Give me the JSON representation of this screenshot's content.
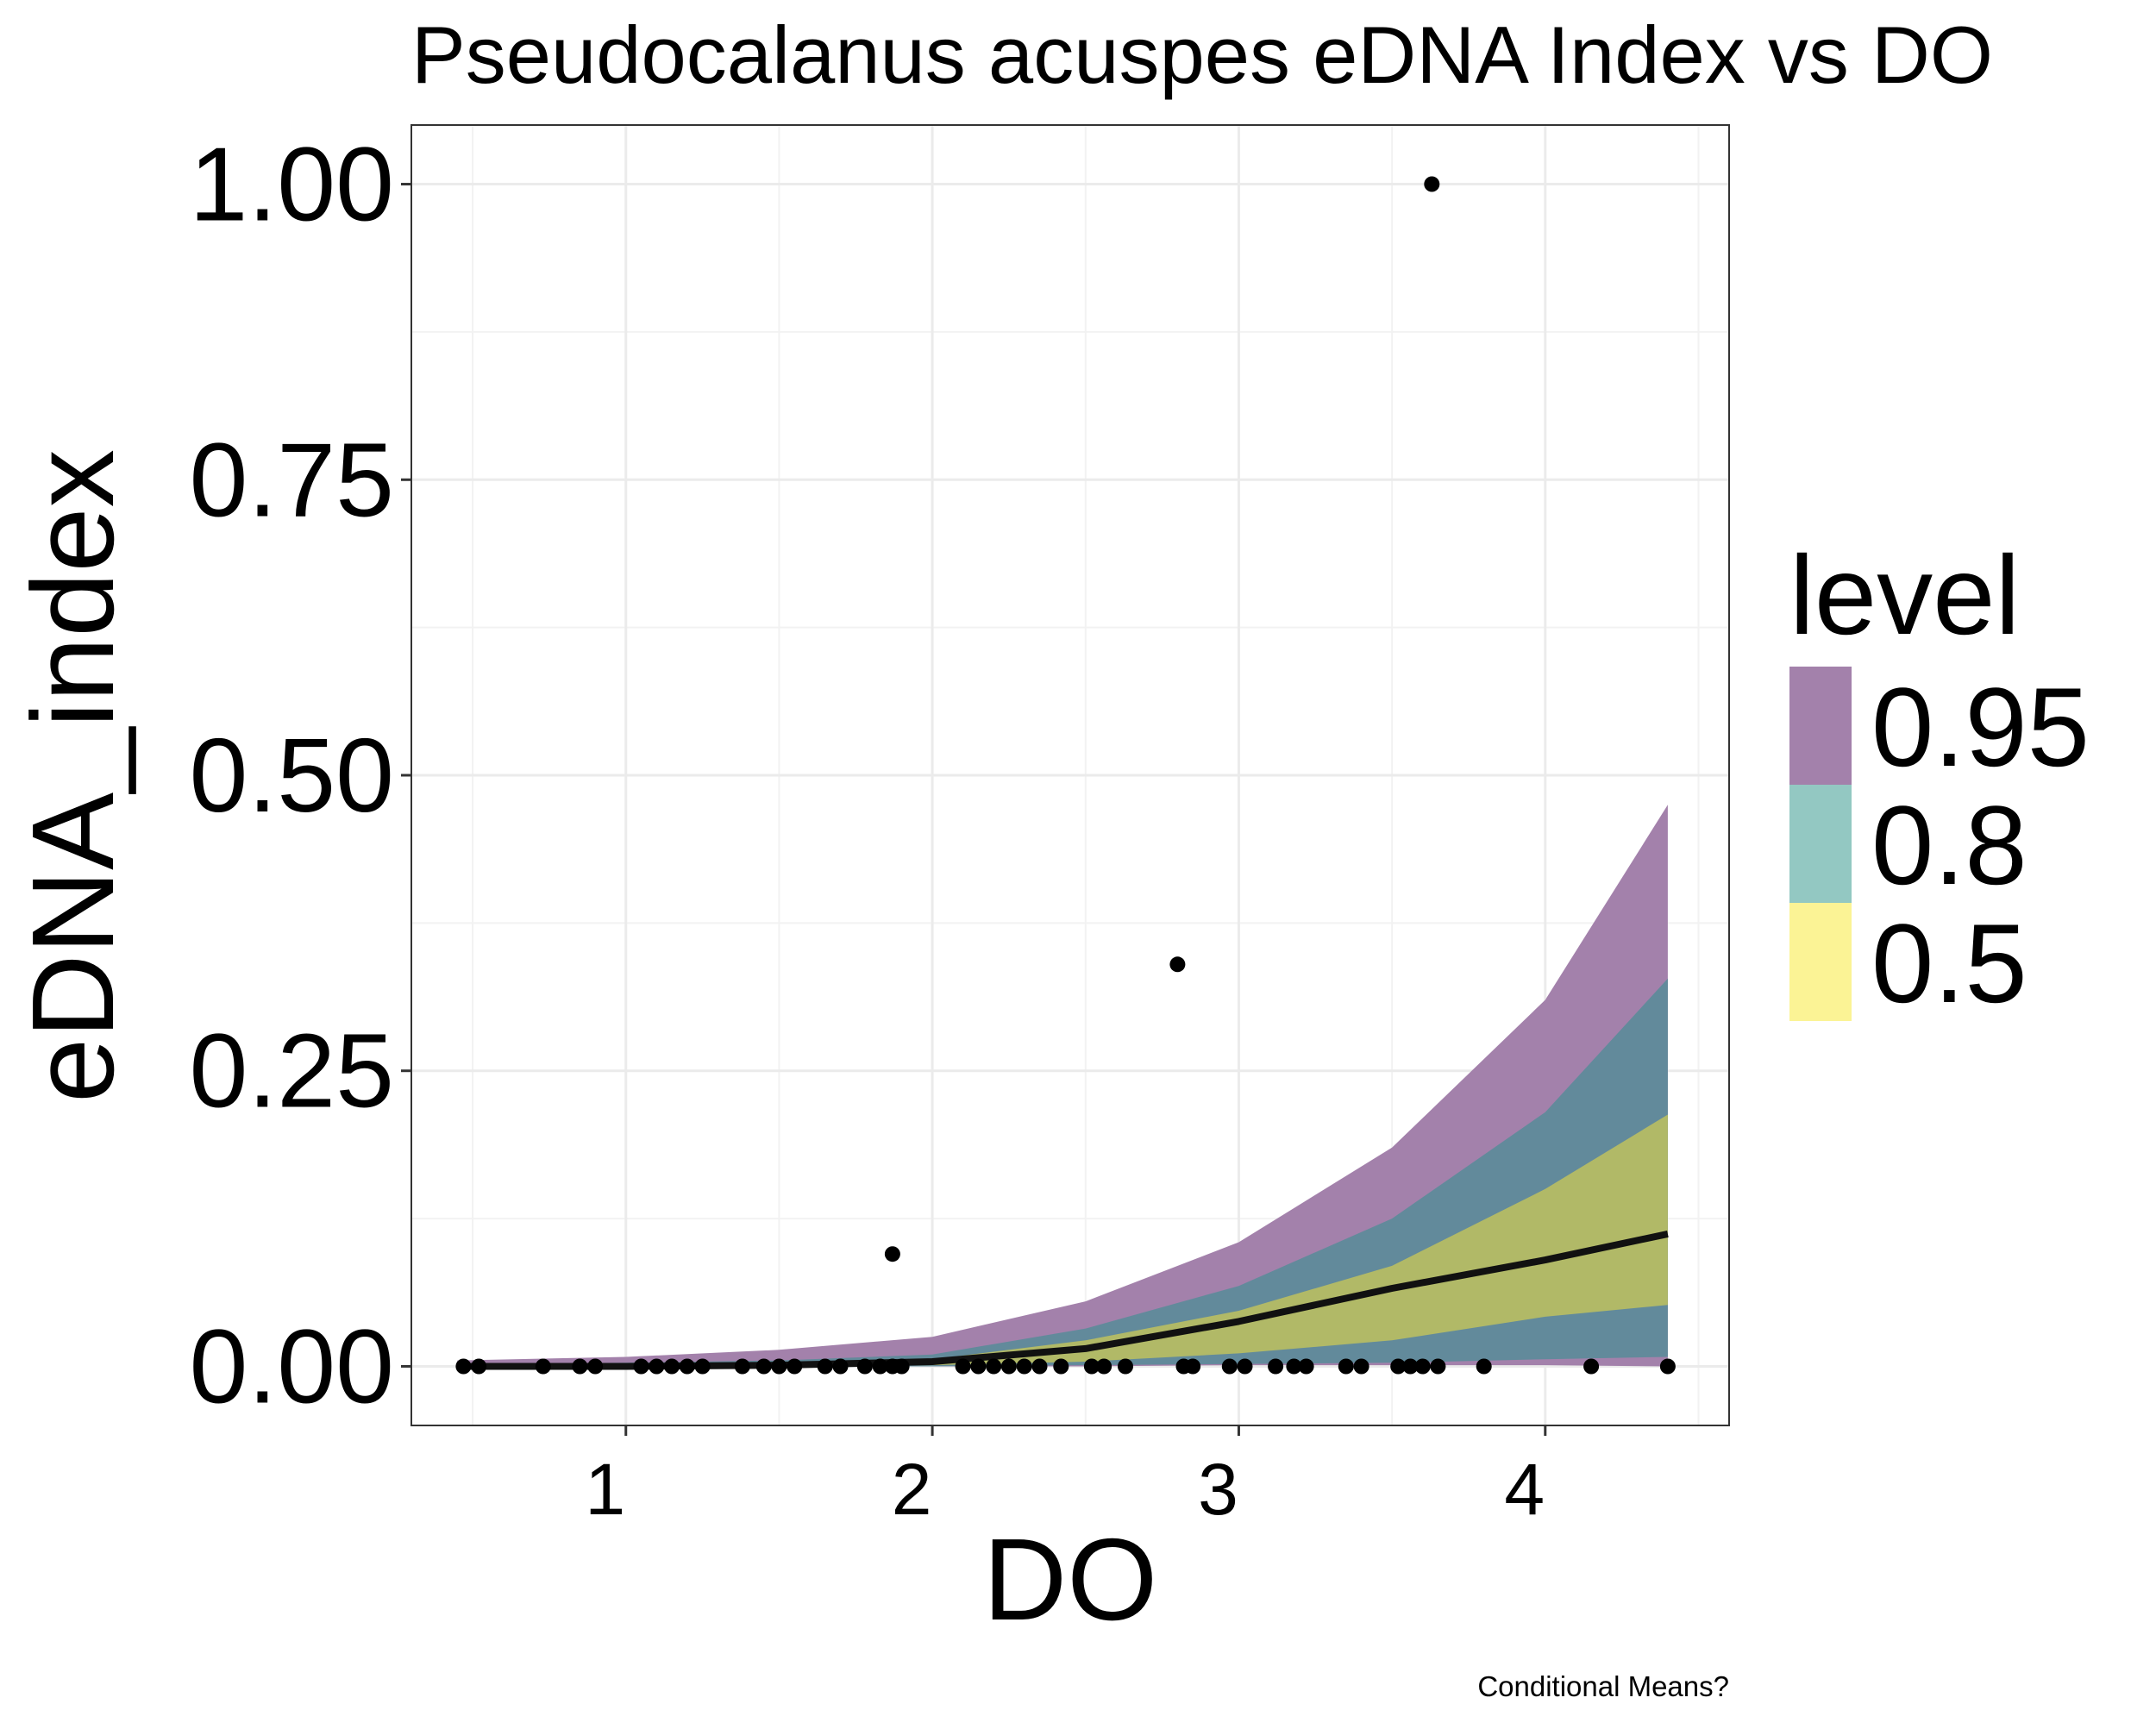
{
  "chart_data": {
    "type": "area",
    "title": "Pseudocalanus acuspes eDNA Index vs DO",
    "xlabel": "DO",
    "ylabel": "eDNA_index",
    "caption": "Conditional Means?",
    "xlim": [
      0.3,
      4.6
    ],
    "ylim": [
      -0.05,
      1.05
    ],
    "x_ticks": [
      1,
      2,
      3,
      4
    ],
    "x_tick_labels": [
      "1",
      "2",
      "3",
      "4"
    ],
    "y_ticks": [
      0.0,
      0.25,
      0.5,
      0.75,
      1.0
    ],
    "y_tick_labels": [
      "0.00",
      "0.25",
      "0.50",
      "0.75",
      "1.00"
    ],
    "grid": true,
    "legend": {
      "title": "level",
      "position": "right",
      "items": [
        {
          "label": "0.95",
          "color": "#a381ab"
        },
        {
          "label": "0.8",
          "color": "#93c8c2"
        },
        {
          "label": "0.5",
          "color": "#fbf395"
        }
      ]
    },
    "colors": {
      "band_95": "#a381ab",
      "band_80": "#628a9b",
      "band_50": "#b1b967",
      "line": "#111111",
      "points": "#000000"
    },
    "band_x": [
      0.45,
      1.0,
      1.5,
      2.0,
      2.5,
      3.0,
      3.5,
      4.0,
      4.4
    ],
    "mean_line": [
      0.0,
      0.0,
      0.001,
      0.004,
      0.015,
      0.038,
      0.066,
      0.09,
      0.112
    ],
    "bands": [
      {
        "level": "0.95",
        "lower": [
          0.0,
          0.0,
          0.0,
          0.0,
          0.0,
          0.001,
          0.001,
          0.001,
          0.0
        ],
        "upper": [
          0.005,
          0.008,
          0.014,
          0.025,
          0.055,
          0.105,
          0.185,
          0.31,
          0.475
        ]
      },
      {
        "level": "0.8",
        "lower": [
          0.0,
          0.0,
          0.0,
          0.0,
          0.001,
          0.002,
          0.003,
          0.006,
          0.008
        ],
        "upper": [
          0.002,
          0.003,
          0.005,
          0.01,
          0.032,
          0.068,
          0.125,
          0.215,
          0.328
        ]
      },
      {
        "level": "0.5",
        "lower": [
          0.0,
          0.0,
          0.0,
          0.001,
          0.004,
          0.011,
          0.022,
          0.042,
          0.052
        ],
        "upper": [
          0.001,
          0.001,
          0.002,
          0.006,
          0.022,
          0.047,
          0.085,
          0.15,
          0.213
        ]
      }
    ],
    "points": [
      {
        "x": 0.47,
        "y": 0
      },
      {
        "x": 0.52,
        "y": 0
      },
      {
        "x": 0.73,
        "y": 0
      },
      {
        "x": 0.85,
        "y": 0
      },
      {
        "x": 0.9,
        "y": 0
      },
      {
        "x": 1.05,
        "y": 0
      },
      {
        "x": 1.1,
        "y": 0
      },
      {
        "x": 1.15,
        "y": 0
      },
      {
        "x": 1.2,
        "y": 0
      },
      {
        "x": 1.25,
        "y": 0
      },
      {
        "x": 1.38,
        "y": 0
      },
      {
        "x": 1.45,
        "y": 0
      },
      {
        "x": 1.5,
        "y": 0
      },
      {
        "x": 1.55,
        "y": 0
      },
      {
        "x": 1.65,
        "y": 0
      },
      {
        "x": 1.7,
        "y": 0
      },
      {
        "x": 1.78,
        "y": 0
      },
      {
        "x": 1.83,
        "y": 0
      },
      {
        "x": 1.87,
        "y": 0
      },
      {
        "x": 1.9,
        "y": 0
      },
      {
        "x": 1.87,
        "y": 0.095
      },
      {
        "x": 2.1,
        "y": 0
      },
      {
        "x": 2.15,
        "y": 0
      },
      {
        "x": 2.2,
        "y": 0
      },
      {
        "x": 2.25,
        "y": 0
      },
      {
        "x": 2.3,
        "y": 0
      },
      {
        "x": 2.35,
        "y": 0
      },
      {
        "x": 2.42,
        "y": 0
      },
      {
        "x": 2.52,
        "y": 0
      },
      {
        "x": 2.56,
        "y": 0
      },
      {
        "x": 2.63,
        "y": 0
      },
      {
        "x": 2.8,
        "y": 0.34
      },
      {
        "x": 2.82,
        "y": 0
      },
      {
        "x": 2.85,
        "y": 0
      },
      {
        "x": 2.97,
        "y": 0
      },
      {
        "x": 3.02,
        "y": 0
      },
      {
        "x": 3.12,
        "y": 0
      },
      {
        "x": 3.18,
        "y": 0
      },
      {
        "x": 3.22,
        "y": 0
      },
      {
        "x": 3.35,
        "y": 0
      },
      {
        "x": 3.4,
        "y": 0
      },
      {
        "x": 3.52,
        "y": 0
      },
      {
        "x": 3.56,
        "y": 0
      },
      {
        "x": 3.6,
        "y": 0
      },
      {
        "x": 3.65,
        "y": 0
      },
      {
        "x": 3.63,
        "y": 1.0
      },
      {
        "x": 3.8,
        "y": 0
      },
      {
        "x": 4.15,
        "y": 0
      },
      {
        "x": 4.4,
        "y": 0
      }
    ]
  }
}
